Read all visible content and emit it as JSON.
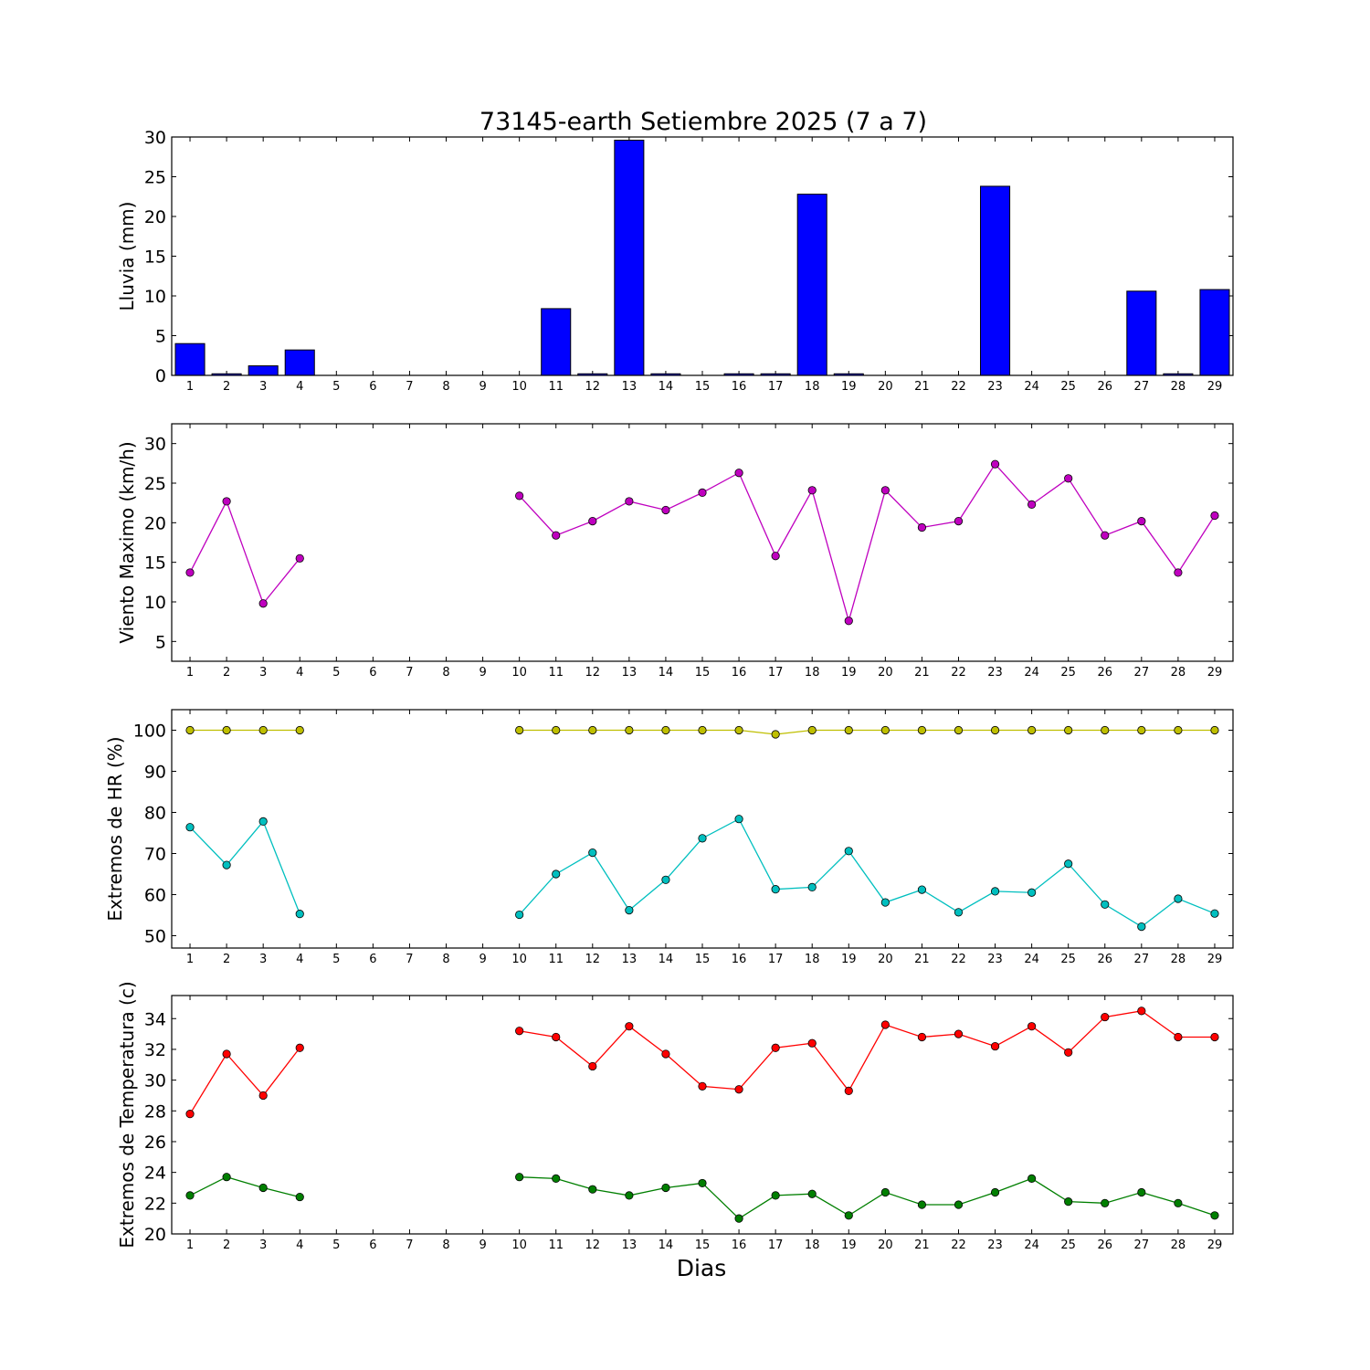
{
  "chart_data": {
    "title": "73145-earth Setiembre 2025  (7 a 7)",
    "xlabel": "Dias",
    "days": [
      "1",
      "2",
      "3",
      "4",
      "5",
      "6",
      "7",
      "8",
      "9",
      "10",
      "11",
      "12",
      "13",
      "14",
      "15",
      "16",
      "17",
      "18",
      "19",
      "20",
      "21",
      "22",
      "23",
      "24",
      "25",
      "26",
      "27",
      "28",
      "29"
    ],
    "panels": [
      {
        "type": "bar",
        "ylabel": "Lluvia (mm)",
        "ylim": [
          0,
          30
        ],
        "yticks": [
          0,
          5,
          10,
          15,
          20,
          25,
          30
        ],
        "series": [
          {
            "color": "#0000ff",
            "values": [
              4.0,
              0.2,
              1.2,
              3.2,
              0,
              0,
              0,
              0,
              0,
              0,
              8.4,
              0.2,
              29.6,
              0.2,
              0,
              0.2,
              0.2,
              22.8,
              0.2,
              0,
              0,
              0,
              23.8,
              0,
              0,
              0,
              10.6,
              0.2,
              10.8
            ]
          }
        ]
      },
      {
        "type": "line",
        "ylabel": "Viento Maximo (km/h)",
        "ylim": [
          2.5,
          32.5
        ],
        "yticks": [
          5,
          10,
          15,
          20,
          25,
          30
        ],
        "series": [
          {
            "color": "#bf00bf",
            "values": [
              13.7,
              22.7,
              9.8,
              15.5,
              null,
              null,
              null,
              null,
              null,
              23.4,
              18.4,
              20.2,
              22.7,
              21.6,
              23.8,
              26.3,
              15.8,
              24.1,
              7.6,
              24.1,
              19.4,
              20.2,
              27.4,
              22.3,
              25.6,
              18.4,
              20.2,
              13.7,
              20.9
            ]
          }
        ]
      },
      {
        "type": "line",
        "ylabel": "Extremos de HR (%)",
        "ylim": [
          47,
          105
        ],
        "yticks": [
          50,
          60,
          70,
          80,
          90,
          100
        ],
        "series": [
          {
            "color": "#bfbf00",
            "values": [
              100,
              100,
              100,
              100,
              null,
              null,
              null,
              null,
              null,
              100,
              100,
              100,
              100,
              100,
              100,
              100,
              99,
              100,
              100,
              100,
              100,
              100,
              100,
              100,
              100,
              100,
              100,
              100,
              100
            ]
          },
          {
            "color": "#00bfbf",
            "values": [
              76.4,
              67.2,
              77.8,
              55.3,
              null,
              null,
              null,
              null,
              null,
              55.1,
              65.0,
              70.2,
              56.2,
              63.6,
              73.7,
              78.4,
              61.3,
              61.8,
              70.6,
              58.1,
              61.2,
              55.7,
              60.8,
              60.5,
              67.5,
              57.6,
              52.2,
              59.0,
              55.4
            ]
          }
        ]
      },
      {
        "type": "line",
        "ylabel": "Extremos de Temperatura (c)",
        "ylim": [
          20,
          35.5
        ],
        "yticks": [
          20,
          22,
          24,
          26,
          28,
          30,
          32,
          34
        ],
        "series": [
          {
            "color": "#ff0000",
            "values": [
              27.8,
              31.7,
              29.0,
              32.1,
              null,
              null,
              null,
              null,
              null,
              33.2,
              32.8,
              30.9,
              33.5,
              31.7,
              29.6,
              29.4,
              32.1,
              32.4,
              29.3,
              33.6,
              32.8,
              33.0,
              32.2,
              33.5,
              31.8,
              34.1,
              34.5,
              32.8,
              32.8
            ]
          },
          {
            "color": "#007f00",
            "values": [
              22.5,
              23.7,
              23.0,
              22.4,
              null,
              null,
              null,
              null,
              null,
              23.7,
              23.6,
              22.9,
              22.5,
              23.0,
              23.3,
              21.0,
              22.5,
              22.6,
              21.2,
              22.7,
              21.9,
              21.9,
              22.7,
              23.6,
              22.1,
              22.0,
              22.7,
              22.0,
              21.2
            ]
          }
        ]
      }
    ]
  }
}
